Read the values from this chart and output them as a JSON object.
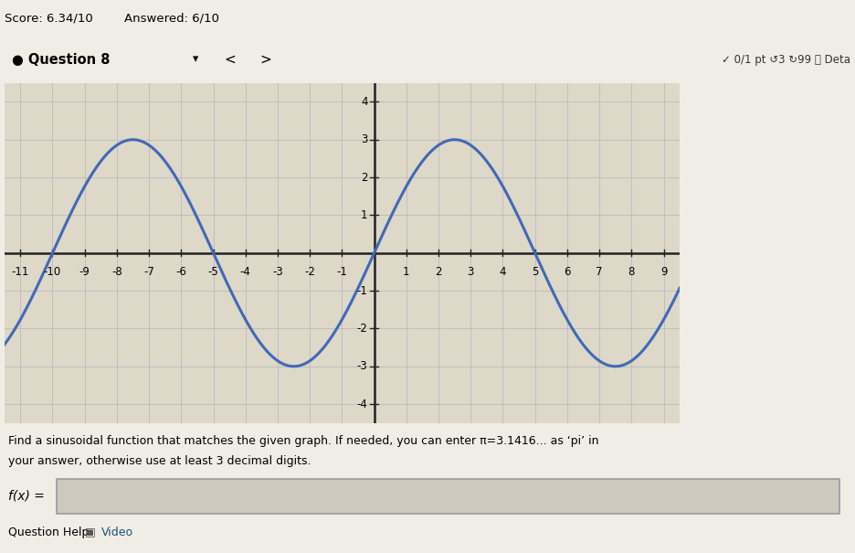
{
  "score_text": "Score: 6.34/10",
  "answered_text": "Answered: 6/10",
  "question_num": "Question 8",
  "right_header": "✓ 0/1 pt ↺3 ↻99 ⓘ Deta",
  "instruction_line1": "Find a sinusoidal function that matches the given graph. If needed, you can enter π=3.1416... as ‘pi’ in",
  "instruction_line2": "your answer, otherwise use at least 3 decimal digits.",
  "fx_label": "f(x) =",
  "help_text": "Question Help:",
  "video_text": "▣ Video",
  "amplitude": 3,
  "period": 10,
  "phase_shift": 0,
  "vertical_shift": 0,
  "curve_color": "#4169b8",
  "curve_linewidth": 2.2,
  "xlim": [
    -11.5,
    9.5
  ],
  "ylim": [
    -4.5,
    4.5
  ],
  "xticks": [
    -11,
    -10,
    -9,
    -8,
    -7,
    -6,
    -5,
    -4,
    -3,
    -2,
    -1,
    1,
    2,
    3,
    4,
    5,
    6,
    7,
    8,
    9
  ],
  "yticks": [
    -4,
    -3,
    -2,
    -1,
    1,
    2,
    3,
    4
  ],
  "grid_color": "#bbbbbb",
  "grid_minor_color": "#dddddd",
  "plot_bg": "#ddd8c8",
  "page_bg": "#f0ede6",
  "axis_color": "#222222",
  "font_size_tick": 8.5,
  "top_bg": "#f0ede6",
  "qbar_bg": "#ffffff",
  "input_bg": "#cdc9be"
}
